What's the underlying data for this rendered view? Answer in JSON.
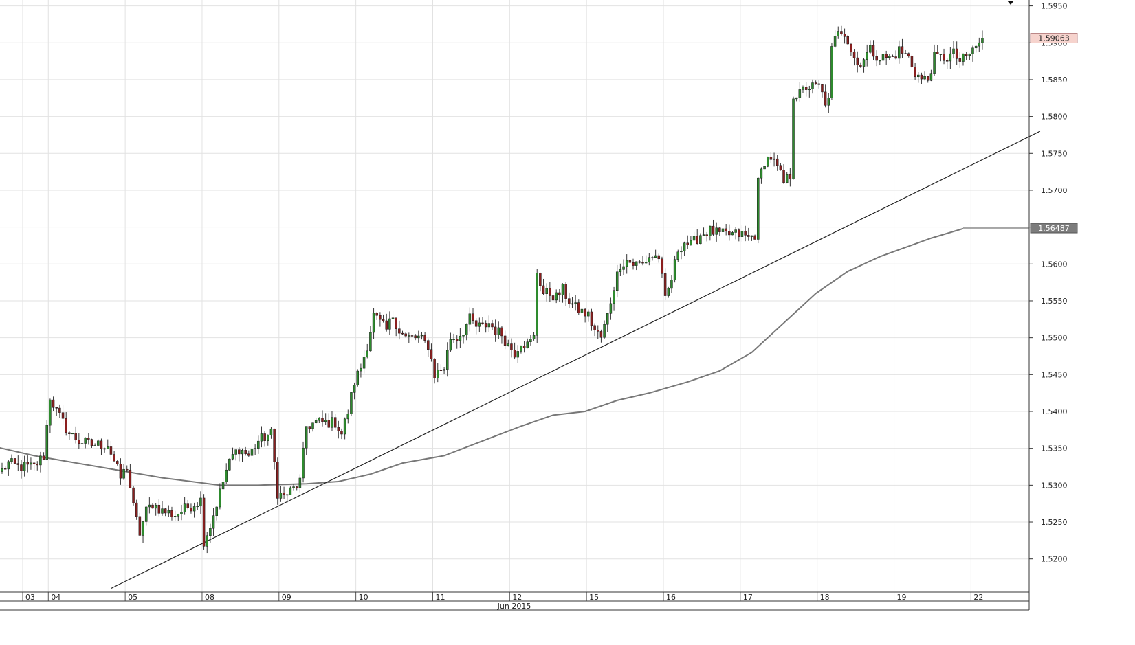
{
  "chart_data": {
    "type": "candlestick",
    "title": "",
    "xlabel": "Jun 2015",
    "ylabel": "",
    "ylim": [
      1.5155,
      1.5958
    ],
    "grid": true,
    "y_ticks": [
      "1.5200",
      "1.5250",
      "1.5300",
      "1.5350",
      "1.5400",
      "1.5450",
      "1.5500",
      "1.5550",
      "1.5600",
      "1.5650",
      "1.5700",
      "1.5750",
      "1.5800",
      "1.5850",
      "1.5900",
      "1.5950"
    ],
    "x_ticks": [
      {
        "label": "03",
        "bar": 0
      },
      {
        "label": "04",
        "bar": 8
      },
      {
        "label": "05",
        "bar": 32
      },
      {
        "label": "08",
        "bar": 56
      },
      {
        "label": "09",
        "bar": 80
      },
      {
        "label": "10",
        "bar": 104
      },
      {
        "label": "11",
        "bar": 128
      },
      {
        "label": "12",
        "bar": 152
      },
      {
        "label": "15",
        "bar": 176
      },
      {
        "label": "16",
        "bar": 200
      },
      {
        "label": "17",
        "bar": 224
      },
      {
        "label": "18",
        "bar": 248
      },
      {
        "label": "19",
        "bar": 272
      },
      {
        "label": "22",
        "bar": 296
      }
    ],
    "anchors": [
      [
        0,
        1.532
      ],
      [
        2,
        1.533
      ],
      [
        5,
        1.5325
      ],
      [
        10,
        1.5325
      ],
      [
        13,
        1.534
      ],
      [
        15,
        1.542
      ],
      [
        17,
        1.54
      ],
      [
        21,
        1.537
      ],
      [
        24,
        1.536
      ],
      [
        28,
        1.5355
      ],
      [
        33,
        1.5355
      ],
      [
        37,
        1.531
      ],
      [
        39,
        1.5325
      ],
      [
        41,
        1.527
      ],
      [
        43,
        1.5235
      ],
      [
        45,
        1.5265
      ],
      [
        47,
        1.5275
      ],
      [
        50,
        1.5265
      ],
      [
        54,
        1.526
      ],
      [
        58,
        1.527
      ],
      [
        62,
        1.528
      ],
      [
        63,
        1.5225
      ],
      [
        65,
        1.5245
      ],
      [
        68,
        1.529
      ],
      [
        70,
        1.532
      ],
      [
        72,
        1.534
      ],
      [
        74,
        1.535
      ],
      [
        77,
        1.534
      ],
      [
        80,
        1.536
      ],
      [
        84,
        1.537
      ],
      [
        86,
        1.529
      ],
      [
        88,
        1.5285
      ],
      [
        91,
        1.5295
      ],
      [
        93,
        1.5305
      ],
      [
        95,
        1.538
      ],
      [
        98,
        1.5385
      ],
      [
        101,
        1.5385
      ],
      [
        104,
        1.5385
      ],
      [
        106,
        1.537
      ],
      [
        108,
        1.54
      ],
      [
        110,
        1.544
      ],
      [
        112,
        1.546
      ],
      [
        114,
        1.549
      ],
      [
        116,
        1.553
      ],
      [
        118,
        1.552
      ],
      [
        120,
        1.551
      ],
      [
        122,
        1.553
      ],
      [
        124,
        1.551
      ],
      [
        126,
        1.55
      ],
      [
        130,
        1.55
      ],
      [
        133,
        1.549
      ],
      [
        135,
        1.545
      ],
      [
        138,
        1.546
      ],
      [
        140,
        1.55
      ],
      [
        142,
        1.55
      ],
      [
        144,
        1.551
      ],
      [
        146,
        1.5525
      ],
      [
        148,
        1.5515
      ],
      [
        150,
        1.5515
      ],
      [
        152,
        1.552
      ],
      [
        154,
        1.551
      ],
      [
        156,
        1.5505
      ],
      [
        158,
        1.549
      ],
      [
        160,
        1.548
      ],
      [
        162,
        1.5495
      ],
      [
        164,
        1.549
      ],
      [
        166,
        1.55
      ],
      [
        167,
        1.559
      ],
      [
        169,
        1.556
      ],
      [
        171,
        1.556
      ],
      [
        173,
        1.5555
      ],
      [
        175,
        1.5565
      ],
      [
        177,
        1.555
      ],
      [
        179,
        1.554
      ],
      [
        181,
        1.5535
      ],
      [
        183,
        1.553
      ],
      [
        185,
        1.551
      ],
      [
        187,
        1.55
      ],
      [
        189,
        1.553
      ],
      [
        191,
        1.557
      ],
      [
        193,
        1.56
      ],
      [
        195,
        1.5605
      ],
      [
        197,
        1.56
      ],
      [
        200,
        1.56
      ],
      [
        202,
        1.561
      ],
      [
        205,
        1.561
      ],
      [
        207,
        1.555
      ],
      [
        209,
        1.558
      ],
      [
        211,
        1.562
      ],
      [
        213,
        1.563
      ],
      [
        215,
        1.5625
      ],
      [
        218,
        1.564
      ],
      [
        221,
        1.5645
      ],
      [
        224,
        1.564
      ],
      [
        227,
        1.564
      ],
      [
        229,
        1.564
      ],
      [
        231,
        1.564
      ],
      [
        233,
        1.5635
      ],
      [
        235,
        1.564
      ],
      [
        236,
        1.571
      ],
      [
        238,
        1.574
      ],
      [
        240,
        1.5745
      ],
      [
        242,
        1.573
      ],
      [
        244,
        1.571
      ],
      [
        246,
        1.572
      ],
      [
        247,
        1.583
      ],
      [
        249,
        1.583
      ],
      [
        251,
        1.584
      ],
      [
        253,
        1.584
      ],
      [
        255,
        1.584
      ],
      [
        257,
        1.582
      ],
      [
        258,
        1.582
      ],
      [
        259,
        1.589
      ],
      [
        261,
        1.592
      ],
      [
        263,
        1.5915
      ],
      [
        265,
        1.589
      ],
      [
        267,
        1.587
      ],
      [
        269,
        1.588
      ],
      [
        271,
        1.589
      ],
      [
        274,
        1.588
      ],
      [
        276,
        1.588
      ],
      [
        278,
        1.588
      ],
      [
        280,
        1.589
      ],
      [
        283,
        1.588
      ],
      [
        285,
        1.586
      ],
      [
        287,
        1.585
      ],
      [
        289,
        1.585
      ],
      [
        291,
        1.588
      ],
      [
        293,
        1.588
      ],
      [
        295,
        1.588
      ],
      [
        297,
        1.5885
      ],
      [
        299,
        1.5875
      ],
      [
        301,
        1.588
      ],
      [
        303,
        1.589
      ],
      [
        305,
        1.59
      ],
      [
        306,
        1.5906
      ]
    ],
    "series": [
      {
        "type": "moving-average",
        "color": "#777777",
        "points": [
          [
            -2,
            1.5352
          ],
          [
            10,
            1.534
          ],
          [
            30,
            1.5325
          ],
          [
            50,
            1.531
          ],
          [
            68,
            1.53
          ],
          [
            80,
            1.53
          ],
          [
            95,
            1.5302
          ],
          [
            105,
            1.5305
          ],
          [
            115,
            1.5315
          ],
          [
            125,
            1.533
          ],
          [
            138,
            1.534
          ],
          [
            150,
            1.536
          ],
          [
            162,
            1.538
          ],
          [
            172,
            1.5395
          ],
          [
            182,
            1.54
          ],
          [
            192,
            1.5415
          ],
          [
            202,
            1.5425
          ],
          [
            214,
            1.544
          ],
          [
            224,
            1.5455
          ],
          [
            234,
            1.548
          ],
          [
            244,
            1.552
          ],
          [
            254,
            1.556
          ],
          [
            264,
            1.559
          ],
          [
            274,
            1.561
          ],
          [
            290,
            1.5635
          ],
          [
            300,
            1.5648
          ]
        ]
      },
      {
        "type": "trendline",
        "color": "#222222",
        "points": [
          [
            34,
            1.516
          ],
          [
            324,
            1.578
          ]
        ]
      }
    ],
    "last_price": "1.59063",
    "ma_value": "1.56487",
    "colors": {
      "up": "#2e8b2e",
      "down": "#8c1f1f",
      "wick": "#333333",
      "grid": "#e2e2e2",
      "last_price_bg": "#f6d3cd",
      "ma_label_bg": "#7c7c7c"
    }
  }
}
